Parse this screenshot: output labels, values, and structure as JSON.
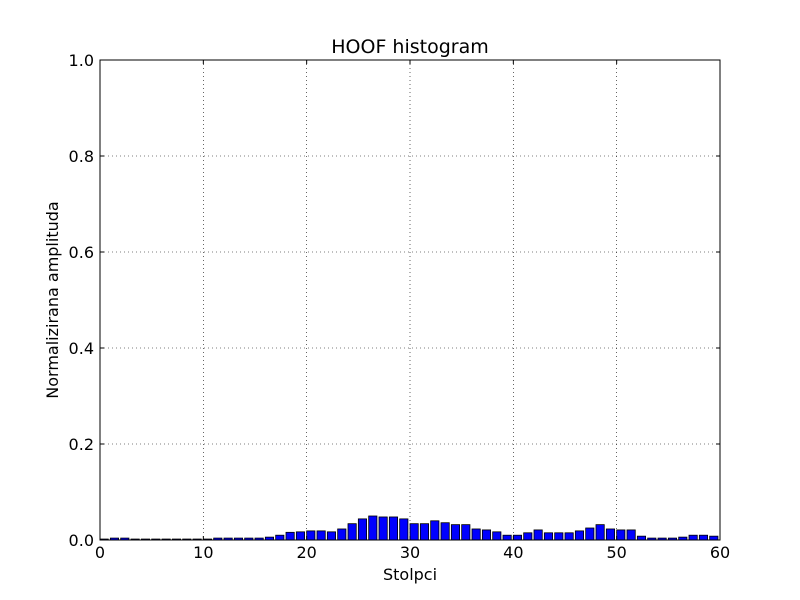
{
  "chart_data": {
    "type": "bar",
    "title": "HOOF histogram",
    "xlabel": "Stolpci",
    "ylabel": "Normalizirana amplituda",
    "xlim": [
      0,
      60
    ],
    "ylim": [
      0,
      1.0
    ],
    "xticks": [
      0,
      10,
      20,
      30,
      40,
      50,
      60
    ],
    "xtick_labels": [
      "0",
      "10",
      "20",
      "30",
      "40",
      "50",
      "60"
    ],
    "yticks": [
      0.0,
      0.2,
      0.4,
      0.6,
      0.8,
      1.0
    ],
    "ytick_labels": [
      "0.0",
      "0.2",
      "0.4",
      "0.6",
      "0.8",
      "1.0"
    ],
    "grid": true,
    "bar_color": "#0000ff",
    "bar_edge_color": "#000000",
    "bar_width": 0.8,
    "x": [
      0,
      1,
      2,
      3,
      4,
      5,
      6,
      7,
      8,
      9,
      10,
      11,
      12,
      13,
      14,
      15,
      16,
      17,
      18,
      19,
      20,
      21,
      22,
      23,
      24,
      25,
      26,
      27,
      28,
      29,
      30,
      31,
      32,
      33,
      34,
      35,
      36,
      37,
      38,
      39,
      40,
      41,
      42,
      43,
      44,
      45,
      46,
      47,
      48,
      49,
      50,
      51,
      52,
      53,
      54,
      55,
      56,
      57,
      58,
      59
    ],
    "values": [
      0.002,
      0.004,
      0.004,
      0.002,
      0.002,
      0.002,
      0.002,
      0.002,
      0.002,
      0.002,
      0.002,
      0.004,
      0.004,
      0.004,
      0.004,
      0.004,
      0.006,
      0.01,
      0.016,
      0.017,
      0.019,
      0.019,
      0.017,
      0.023,
      0.034,
      0.044,
      0.05,
      0.048,
      0.048,
      0.044,
      0.034,
      0.034,
      0.04,
      0.036,
      0.032,
      0.032,
      0.023,
      0.021,
      0.017,
      0.01,
      0.01,
      0.015,
      0.021,
      0.015,
      0.015,
      0.015,
      0.019,
      0.025,
      0.032,
      0.023,
      0.021,
      0.021,
      0.008,
      0.004,
      0.004,
      0.004,
      0.006,
      0.01,
      0.01,
      0.008
    ]
  }
}
